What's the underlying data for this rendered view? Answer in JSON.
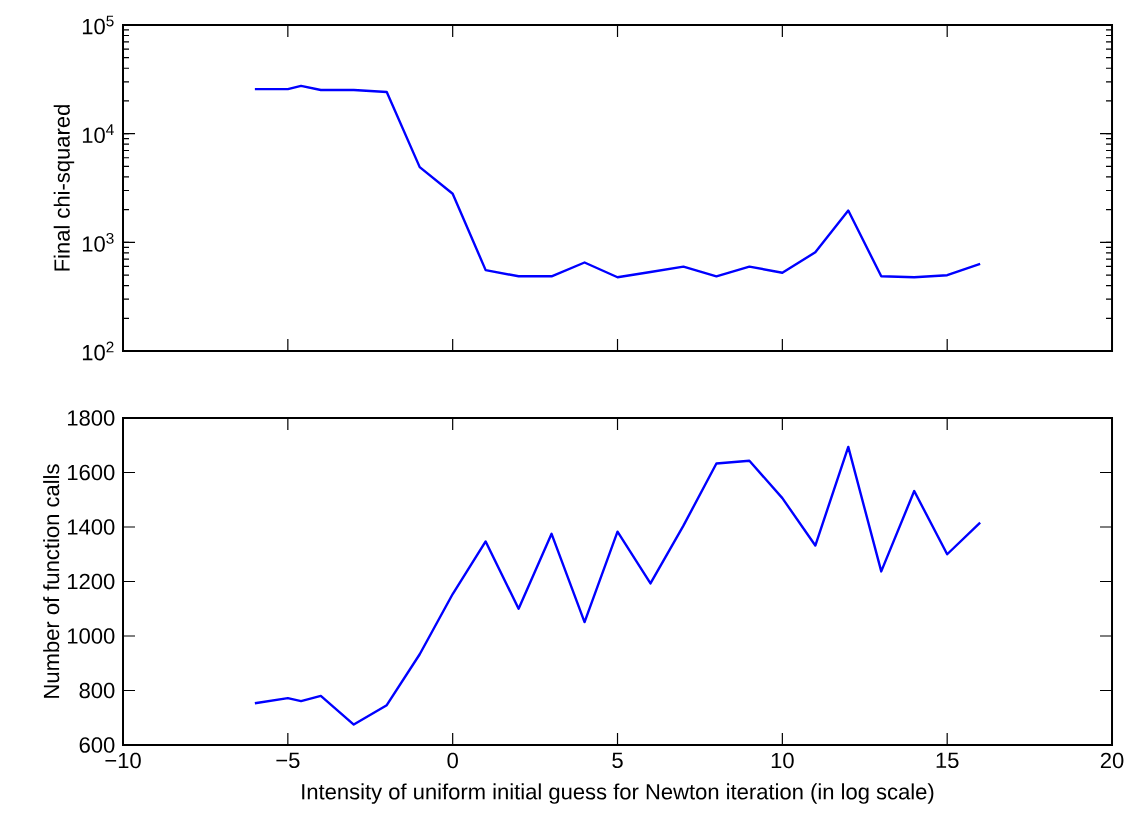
{
  "chart_data": [
    {
      "type": "line",
      "ylabel": "Final chi-squared",
      "log": "y",
      "grid": false,
      "tick_labels": "y",
      "marker": "none",
      "line_style": "solid",
      "xlim": [
        -10,
        20
      ],
      "xticks": [
        -5,
        0,
        5,
        10,
        15
      ],
      "ylim": [
        100,
        100000
      ],
      "yticks": [
        {
          "value": 100,
          "label": "10$^{2}$"
        },
        {
          "value": 1000,
          "label": "10$^{3}$"
        },
        {
          "value": 10000,
          "label": "10$^{4}$"
        },
        {
          "value": 100000,
          "label": "10$^{5}$"
        }
      ],
      "x": [
        -6,
        -5,
        -4.6,
        -4,
        -3,
        -2,
        -1,
        0,
        1,
        2,
        3,
        4,
        5,
        6,
        7,
        8,
        9,
        10,
        11,
        12,
        13,
        14,
        15,
        16
      ],
      "series": [
        {
          "color": "#0000ff",
          "values": [
            25700,
            25700,
            27500,
            25200,
            25200,
            24200,
            4920,
            2800,
            555,
            487,
            487,
            652,
            477,
            533,
            598,
            487,
            598,
            525,
            810,
            1960,
            487,
            477,
            498,
            632
          ]
        }
      ]
    },
    {
      "type": "line",
      "ylabel": "Number of function calls",
      "xlabel": "Intensity of uniform initial guess for Newton iteration (in log scale)",
      "grid": false,
      "marker": "none",
      "line_style": "solid",
      "xlim": [
        -10,
        20
      ],
      "xticks": [
        {
          "value": -10,
          "label": "−10"
        },
        {
          "value": -5,
          "label": "−5"
        },
        0,
        5,
        10,
        15,
        20
      ],
      "ylim": [
        600,
        1800
      ],
      "yticks": [
        600,
        800,
        1000,
        1200,
        1400,
        1600,
        1800
      ],
      "x": [
        -6,
        -5,
        -4.6,
        -4,
        -3,
        -2,
        -1,
        0,
        1,
        2,
        3,
        4,
        5,
        6,
        7,
        8,
        9,
        10,
        11,
        12,
        13,
        14,
        15,
        16
      ],
      "series": [
        {
          "color": "#0000ff",
          "values": [
            753,
            772,
            761,
            780,
            675,
            746,
            933,
            1154,
            1347,
            1100,
            1375,
            1051,
            1383,
            1193,
            1405,
            1633,
            1643,
            1506,
            1332,
            1694,
            1237,
            1532,
            1300,
            1416
          ]
        }
      ]
    }
  ]
}
